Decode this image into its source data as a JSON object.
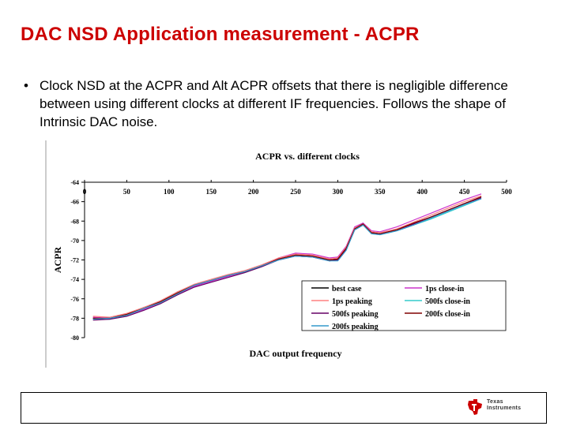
{
  "slide": {
    "title": "DAC NSD Application measurement - ACPR",
    "bullet_marker": "•",
    "bullets": [
      "Clock NSD at the ACPR and Alt ACPR offsets that there is negligible difference between using different clocks at different IF frequencies. Follows the shape of Intrinsic DAC noise."
    ]
  },
  "footer": {
    "logo_line1": "Texas",
    "logo_line2": "Instruments",
    "logo_color": "#cc0000"
  },
  "chart_data": {
    "type": "line",
    "title": "ACPR vs. different clocks",
    "xlabel": "DAC output frequency",
    "ylabel": "ACPR",
    "xlim": [
      0,
      500
    ],
    "ylim": [
      -80,
      -64
    ],
    "x_ticks": [
      0,
      50,
      100,
      150,
      200,
      250,
      300,
      350,
      400,
      450,
      500
    ],
    "y_ticks": [
      -64,
      -66,
      -68,
      -70,
      -72,
      -74,
      -76,
      -78,
      -80
    ],
    "x_axis_position": "top",
    "grid": false,
    "legend_position": "bottom-right",
    "x": [
      10,
      30,
      50,
      70,
      90,
      110,
      130,
      150,
      170,
      190,
      210,
      230,
      250,
      270,
      290,
      300,
      310,
      320,
      330,
      340,
      350,
      370,
      390,
      410,
      430,
      450,
      470
    ],
    "series": [
      {
        "name": "best case",
        "color": "#000000",
        "values": [
          -78.0,
          -78.0,
          -77.6,
          -76.9,
          -76.3,
          -75.3,
          -74.6,
          -74.1,
          -73.6,
          -73.2,
          -72.6,
          -71.9,
          -71.5,
          -71.6,
          -72.0,
          -71.9,
          -70.8,
          -68.8,
          -68.3,
          -69.2,
          -69.3,
          -68.9,
          -68.2,
          -67.6,
          -66.9,
          -66.2,
          -65.5
        ]
      },
      {
        "name": "1ps close-in",
        "color": "#cc33cc",
        "values": [
          -77.9,
          -78.0,
          -77.7,
          -77.1,
          -76.4,
          -75.5,
          -74.7,
          -74.2,
          -73.7,
          -73.2,
          -72.6,
          -71.8,
          -71.3,
          -71.4,
          -71.8,
          -71.7,
          -70.6,
          -68.6,
          -68.2,
          -69.0,
          -69.1,
          -68.6,
          -67.9,
          -67.2,
          -66.5,
          -65.8,
          -65.2
        ]
      },
      {
        "name": "1ps peaking",
        "color": "#ff8080",
        "values": [
          -77.8,
          -77.9,
          -77.5,
          -76.9,
          -76.2,
          -75.3,
          -74.5,
          -74.0,
          -73.5,
          -73.1,
          -72.5,
          -71.8,
          -71.4,
          -71.5,
          -71.9,
          -71.8,
          -70.7,
          -68.7,
          -68.3,
          -69.1,
          -69.2,
          -68.8,
          -68.1,
          -67.4,
          -66.7,
          -66.0,
          -65.4
        ]
      },
      {
        "name": "500fs close-in",
        "color": "#33cccc",
        "values": [
          -78.1,
          -78.1,
          -77.7,
          -77.0,
          -76.3,
          -75.4,
          -74.6,
          -74.1,
          -73.6,
          -73.2,
          -72.6,
          -72.0,
          -71.6,
          -71.7,
          -72.1,
          -72.0,
          -70.9,
          -68.9,
          -68.4,
          -69.3,
          -69.4,
          -69.0,
          -68.4,
          -67.8,
          -67.1,
          -66.4,
          -65.7
        ]
      },
      {
        "name": "500fs peaking",
        "color": "#660066",
        "values": [
          -78.2,
          -78.1,
          -77.8,
          -77.2,
          -76.5,
          -75.6,
          -74.8,
          -74.3,
          -73.8,
          -73.3,
          -72.7,
          -72.0,
          -71.6,
          -71.7,
          -72.1,
          -72.0,
          -70.9,
          -68.9,
          -68.4,
          -69.2,
          -69.3,
          -68.9,
          -68.3,
          -67.6,
          -66.9,
          -66.2,
          -65.6
        ]
      },
      {
        "name": "200fs close-in",
        "color": "#800000",
        "values": [
          -78.0,
          -78.0,
          -77.6,
          -77.0,
          -76.3,
          -75.4,
          -74.6,
          -74.1,
          -73.6,
          -73.2,
          -72.6,
          -71.9,
          -71.5,
          -71.6,
          -72.0,
          -71.9,
          -70.8,
          -68.8,
          -68.3,
          -69.2,
          -69.3,
          -68.9,
          -68.2,
          -67.6,
          -66.9,
          -66.2,
          -65.5
        ]
      },
      {
        "name": "200fs peaking",
        "color": "#3399cc",
        "values": [
          -78.1,
          -78.0,
          -77.7,
          -77.0,
          -76.4,
          -75.5,
          -74.6,
          -74.1,
          -73.6,
          -73.2,
          -72.6,
          -72.0,
          -71.6,
          -71.7,
          -72.1,
          -72.1,
          -71.0,
          -68.9,
          -68.4,
          -69.3,
          -69.4,
          -69.0,
          -68.4,
          -67.7,
          -67.0,
          -66.3,
          -65.7
        ]
      }
    ]
  }
}
